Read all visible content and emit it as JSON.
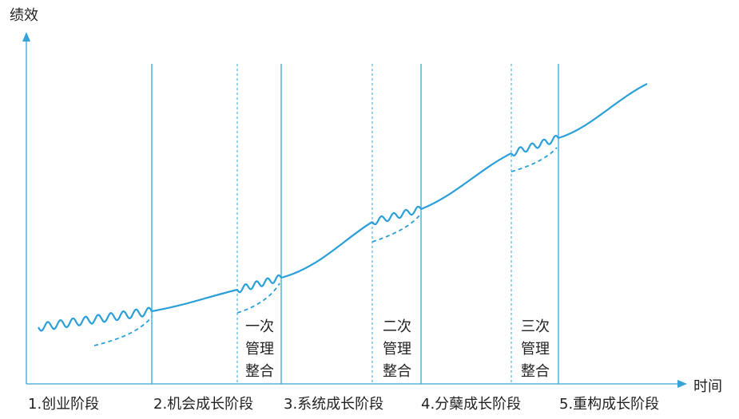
{
  "y_axis_label": "绩效",
  "x_axis_label": "时间",
  "stages": [
    "1.创业阶段",
    "2.机会成长阶段",
    "3.系统成长阶段",
    "4.分蘖成长阶段",
    "5.重构成长阶段"
  ],
  "integrations": [
    [
      "一次",
      "管理",
      "整合"
    ],
    [
      "二次",
      "管理",
      "整合"
    ],
    [
      "三次",
      "管理",
      "整合"
    ]
  ]
}
